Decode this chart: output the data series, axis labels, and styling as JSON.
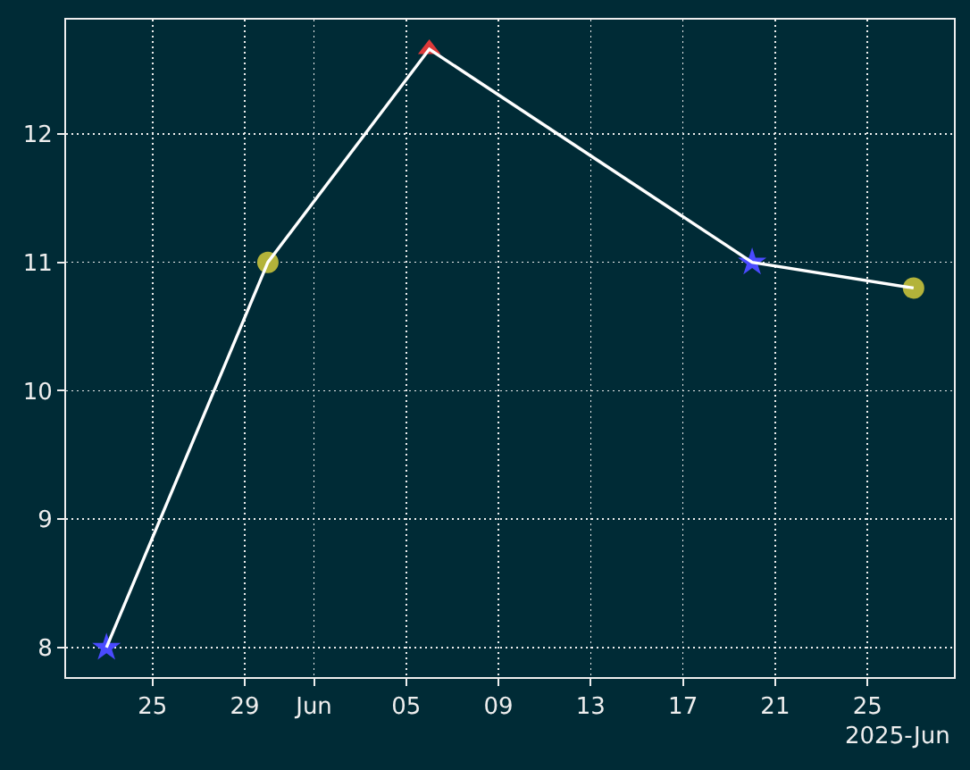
{
  "chart_data": {
    "type": "line",
    "series": [
      {
        "type": "scatter",
        "color": "#4a4aff",
        "marker": "star",
        "x": [
          "2025-05-23",
          "2025-06-20"
        ],
        "values": [
          8.0,
          11.0
        ]
      },
      {
        "type": "scatter",
        "color": "#b3b33a",
        "marker": "circle",
        "x": [
          "2025-05-30",
          "2025-06-27"
        ],
        "values": [
          11.0,
          10.8
        ]
      },
      {
        "type": "scatter",
        "color": "#dd3a3a",
        "marker": "triangle",
        "x": [
          "2025-06-06"
        ],
        "values": [
          12.66
        ]
      },
      {
        "color": "#ffffff",
        "marker": "none",
        "line_style": "solid",
        "x": [
          "2025-05-23",
          "2025-05-30",
          "2025-06-06",
          "2025-06-20",
          "2025-06-27"
        ],
        "values": [
          8.0,
          11.0,
          12.66,
          11.0,
          10.8
        ]
      }
    ],
    "xlim": [
      "2025-05-21T06:00",
      "2025-06-28T18:00"
    ],
    "xticks": [
      {
        "value": "2025-05-25",
        "label": "25"
      },
      {
        "value": "2025-05-29",
        "label": "29"
      },
      {
        "value": "2025-06-01",
        "label": "Jun"
      },
      {
        "value": "2025-06-05",
        "label": "05"
      },
      {
        "value": "2025-06-09",
        "label": "09"
      },
      {
        "value": "2025-06-13",
        "label": "13"
      },
      {
        "value": "2025-06-17",
        "label": "17"
      },
      {
        "value": "2025-06-21",
        "label": "21"
      },
      {
        "value": "2025-06-25",
        "label": "25"
      }
    ],
    "ylim": [
      7.77,
      12.89
    ],
    "yticks": [
      8,
      9,
      10,
      11,
      12
    ],
    "grid": true,
    "annotations": [
      "2025-Jun"
    ]
  }
}
